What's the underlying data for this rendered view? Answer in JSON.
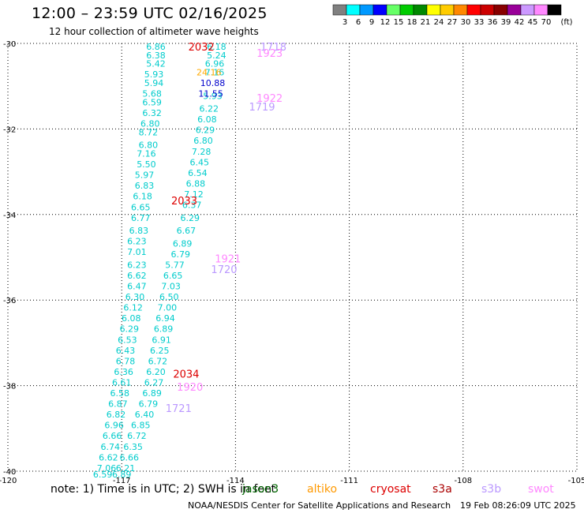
{
  "header": {
    "title": "12:00 – 23:59 UTC 02/16/2025",
    "subtitle": "12 hour collection of altimeter wave heights"
  },
  "colorbar": {
    "unit": "(ft)",
    "bins": [
      {
        "label": "3",
        "color": "#808080"
      },
      {
        "label": "6",
        "color": "#00ffff"
      },
      {
        "label": "9",
        "color": "#0099ff"
      },
      {
        "label": "12",
        "color": "#0000ff"
      },
      {
        "label": "15",
        "color": "#66ff66"
      },
      {
        "label": "18",
        "color": "#00cc00"
      },
      {
        "label": "21",
        "color": "#008800"
      },
      {
        "label": "24",
        "color": "#ffff00"
      },
      {
        "label": "27",
        "color": "#ffcc00"
      },
      {
        "label": "30",
        "color": "#ff8800"
      },
      {
        "label": "33",
        "color": "#ff0000"
      },
      {
        "label": "36",
        "color": "#cc0000"
      },
      {
        "label": "39",
        "color": "#880000"
      },
      {
        "label": "42",
        "color": "#990099"
      },
      {
        "label": "45",
        "color": "#cc99ff"
      },
      {
        "label": "70",
        "color": "#ff88ff"
      },
      {
        "label": "",
        "color": "#000000"
      }
    ]
  },
  "footer": {
    "note": "note:  1) Time is in UTC; 2) SWH is in feet",
    "satellites": [
      {
        "name": "jason3",
        "color": "#006600"
      },
      {
        "name": "altiko",
        "color": "#ff9900"
      },
      {
        "name": "cryosat",
        "color": "#dd0000"
      },
      {
        "name": "s3a",
        "color": "#aa0000"
      },
      {
        "name": "s3b",
        "color": "#bb99ff"
      },
      {
        "name": "swot",
        "color": "#ff88ff"
      }
    ],
    "credit": "NOAA/NESDIS Center for Satellite Applications and Research",
    "generated": "19 Feb 08:26:09 UTC 2025"
  },
  "chart_data": {
    "type": "scatter",
    "xlim": [
      -120,
      -105
    ],
    "ylim": [
      -40,
      -30
    ],
    "x_ticks": [
      "-120",
      "-117",
      "-114",
      "-111",
      "-108",
      "-105"
    ],
    "y_ticks": [
      "-30",
      "-32",
      "-34",
      "-36",
      "-38",
      "-40"
    ],
    "grid": true,
    "grid_style": "dotted",
    "tracks": [
      {
        "satellite": "s3b",
        "color": "#00cccc",
        "points": [
          {
            "x": -116.1,
            "y": -30.0,
            "v": "6.86"
          },
          {
            "x": -116.1,
            "y": -30.2,
            "v": "6.38"
          },
          {
            "x": -116.1,
            "y": -30.4,
            "v": "5.42"
          },
          {
            "x": -116.15,
            "y": -30.65,
            "v": "5.93"
          },
          {
            "x": -116.15,
            "y": -30.85,
            "v": "5.94"
          },
          {
            "x": -116.2,
            "y": -31.1,
            "v": "5.68"
          },
          {
            "x": -116.2,
            "y": -31.3,
            "v": "6.59"
          },
          {
            "x": -116.2,
            "y": -31.55,
            "v": "6.32"
          },
          {
            "x": -116.25,
            "y": -31.8,
            "v": "6.80"
          },
          {
            "x": -116.3,
            "y": -32.0,
            "v": "8.72"
          },
          {
            "x": -116.3,
            "y": -32.3,
            "v": "6.80"
          },
          {
            "x": -116.35,
            "y": -32.5,
            "v": "7.16"
          },
          {
            "x": -116.35,
            "y": -32.75,
            "v": "5.50"
          },
          {
            "x": -116.4,
            "y": -33.0,
            "v": "5.97"
          },
          {
            "x": -116.4,
            "y": -33.25,
            "v": "6.83"
          },
          {
            "x": -116.45,
            "y": -33.5,
            "v": "6.18"
          },
          {
            "x": -116.5,
            "y": -33.75,
            "v": "6.65"
          },
          {
            "x": -116.5,
            "y": -34.0,
            "v": "6.77"
          },
          {
            "x": -116.55,
            "y": -34.3,
            "v": "6.83"
          },
          {
            "x": -116.6,
            "y": -34.55,
            "v": "6.23"
          },
          {
            "x": -116.6,
            "y": -34.8,
            "v": "7.01"
          },
          {
            "x": -116.6,
            "y": -35.1,
            "v": "6.23"
          },
          {
            "x": -116.6,
            "y": -35.35,
            "v": "6.62"
          },
          {
            "x": -116.6,
            "y": -35.6,
            "v": "6.47"
          },
          {
            "x": -116.65,
            "y": -35.85,
            "v": "6.30"
          },
          {
            "x": -116.7,
            "y": -36.1,
            "v": "6.12"
          },
          {
            "x": -116.75,
            "y": -36.35,
            "v": "6.08"
          },
          {
            "x": -116.8,
            "y": -36.6,
            "v": "6.29"
          },
          {
            "x": -116.85,
            "y": -36.85,
            "v": "6.53"
          },
          {
            "x": -116.9,
            "y": -37.1,
            "v": "6.43"
          },
          {
            "x": -116.9,
            "y": -37.35,
            "v": "6.78"
          },
          {
            "x": -116.95,
            "y": -37.6,
            "v": "6.36"
          },
          {
            "x": -117.0,
            "y": -37.85,
            "v": "6.61"
          },
          {
            "x": -117.05,
            "y": -38.1,
            "v": "6.58"
          },
          {
            "x": -117.1,
            "y": -38.35,
            "v": "6.87"
          },
          {
            "x": -117.15,
            "y": -38.6,
            "v": "6.82"
          },
          {
            "x": -117.2,
            "y": -38.85,
            "v": "6.96"
          },
          {
            "x": -117.25,
            "y": -39.1,
            "v": "6.66"
          },
          {
            "x": -117.3,
            "y": -39.35,
            "v": "6.74"
          },
          {
            "x": -117.35,
            "y": -39.6,
            "v": "6.62"
          },
          {
            "x": -117.4,
            "y": -39.85,
            "v": "7.06"
          },
          {
            "x": -117.5,
            "y": -40.0,
            "v": "6.59"
          }
        ]
      },
      {
        "satellite": "s3b",
        "color": "#00cccc",
        "points": [
          {
            "x": -114.5,
            "y": -30.0,
            "v": "6.18"
          },
          {
            "x": -114.5,
            "y": -30.2,
            "v": "5.24"
          },
          {
            "x": -114.55,
            "y": -30.4,
            "v": "6.96"
          },
          {
            "x": -114.55,
            "y": -30.6,
            "v": "7.16"
          },
          {
            "x": -114.6,
            "y": -31.15,
            "v": "5.93"
          },
          {
            "x": -114.7,
            "y": -31.45,
            "v": "6.22"
          },
          {
            "x": -114.75,
            "y": -31.7,
            "v": "6.08"
          },
          {
            "x": -114.8,
            "y": -31.95,
            "v": "6.29"
          },
          {
            "x": -114.85,
            "y": -32.2,
            "v": "6.80"
          },
          {
            "x": -114.9,
            "y": -32.45,
            "v": "7.28"
          },
          {
            "x": -114.95,
            "y": -32.7,
            "v": "6.45"
          },
          {
            "x": -115.0,
            "y": -32.95,
            "v": "6.54"
          },
          {
            "x": -115.05,
            "y": -33.2,
            "v": "6.88"
          },
          {
            "x": -115.1,
            "y": -33.45,
            "v": "7.12"
          },
          {
            "x": -115.15,
            "y": -33.7,
            "v": "6.37"
          },
          {
            "x": -115.2,
            "y": -34.0,
            "v": "6.29"
          },
          {
            "x": -115.3,
            "y": -34.3,
            "v": "6.67"
          },
          {
            "x": -115.4,
            "y": -34.6,
            "v": "6.89"
          },
          {
            "x": -115.45,
            "y": -34.85,
            "v": "6.79"
          },
          {
            "x": -115.6,
            "y": -35.1,
            "v": "5.77"
          },
          {
            "x": -115.65,
            "y": -35.35,
            "v": "6.65"
          },
          {
            "x": -115.7,
            "y": -35.6,
            "v": "7.03"
          },
          {
            "x": -115.75,
            "y": -35.85,
            "v": "6.50"
          },
          {
            "x": -115.8,
            "y": -36.1,
            "v": "7.00"
          },
          {
            "x": -115.85,
            "y": -36.35,
            "v": "6.94"
          },
          {
            "x": -115.9,
            "y": -36.6,
            "v": "6.89"
          },
          {
            "x": -115.95,
            "y": -36.85,
            "v": "6.91"
          },
          {
            "x": -116.0,
            "y": -37.1,
            "v": "6.25"
          },
          {
            "x": -116.05,
            "y": -37.35,
            "v": "6.72"
          },
          {
            "x": -116.1,
            "y": -37.6,
            "v": "6.20"
          },
          {
            "x": -116.15,
            "y": -37.85,
            "v": "6.27"
          },
          {
            "x": -116.2,
            "y": -38.1,
            "v": "6.89"
          },
          {
            "x": -116.3,
            "y": -38.35,
            "v": "6.79"
          },
          {
            "x": -116.4,
            "y": -38.6,
            "v": "6.40"
          },
          {
            "x": -116.5,
            "y": -38.85,
            "v": "6.85"
          },
          {
            "x": -116.6,
            "y": -39.1,
            "v": "6.72"
          },
          {
            "x": -116.7,
            "y": -39.35,
            "v": "6.35"
          },
          {
            "x": -116.8,
            "y": -39.6,
            "v": "6.66"
          },
          {
            "x": -116.9,
            "y": -39.85,
            "v": "6.21"
          },
          {
            "x": -117.0,
            "y": -40.0,
            "v": "6.89"
          }
        ]
      },
      {
        "satellite": "mixed",
        "color": "#0000cc",
        "points": [
          {
            "x": -114.6,
            "y": -30.85,
            "v": "10.88"
          },
          {
            "x": -114.65,
            "y": -31.1,
            "v": "11.55"
          }
        ]
      },
      {
        "satellite": "altiko",
        "color": "#ffaa00",
        "points": [
          {
            "x": -114.7,
            "y": -30.6,
            "v": "24.16"
          }
        ]
      }
    ],
    "time_labels": [
      {
        "x": -114.9,
        "y": -30.0,
        "v": "2032",
        "color": "#dd0000"
      },
      {
        "x": -113.0,
        "y": -30.0,
        "v": "1718",
        "color": "#bb99ff"
      },
      {
        "x": -113.1,
        "y": -30.15,
        "v": "1923",
        "color": "#ff88ff"
      },
      {
        "x": -113.1,
        "y": -31.2,
        "v": "1922",
        "color": "#ff88ff"
      },
      {
        "x": -113.3,
        "y": -31.4,
        "v": "1719",
        "color": "#bb99ff"
      },
      {
        "x": -115.35,
        "y": -33.6,
        "v": "2033",
        "color": "#dd0000"
      },
      {
        "x": -114.2,
        "y": -34.95,
        "v": "1921",
        "color": "#ff88ff"
      },
      {
        "x": -114.3,
        "y": -35.2,
        "v": "1720",
        "color": "#bb99ff"
      },
      {
        "x": -115.3,
        "y": -37.65,
        "v": "2034",
        "color": "#dd0000"
      },
      {
        "x": -115.2,
        "y": -37.95,
        "v": "1920",
        "color": "#ff88ff"
      },
      {
        "x": -115.5,
        "y": -38.45,
        "v": "1721",
        "color": "#bb99ff"
      }
    ]
  }
}
